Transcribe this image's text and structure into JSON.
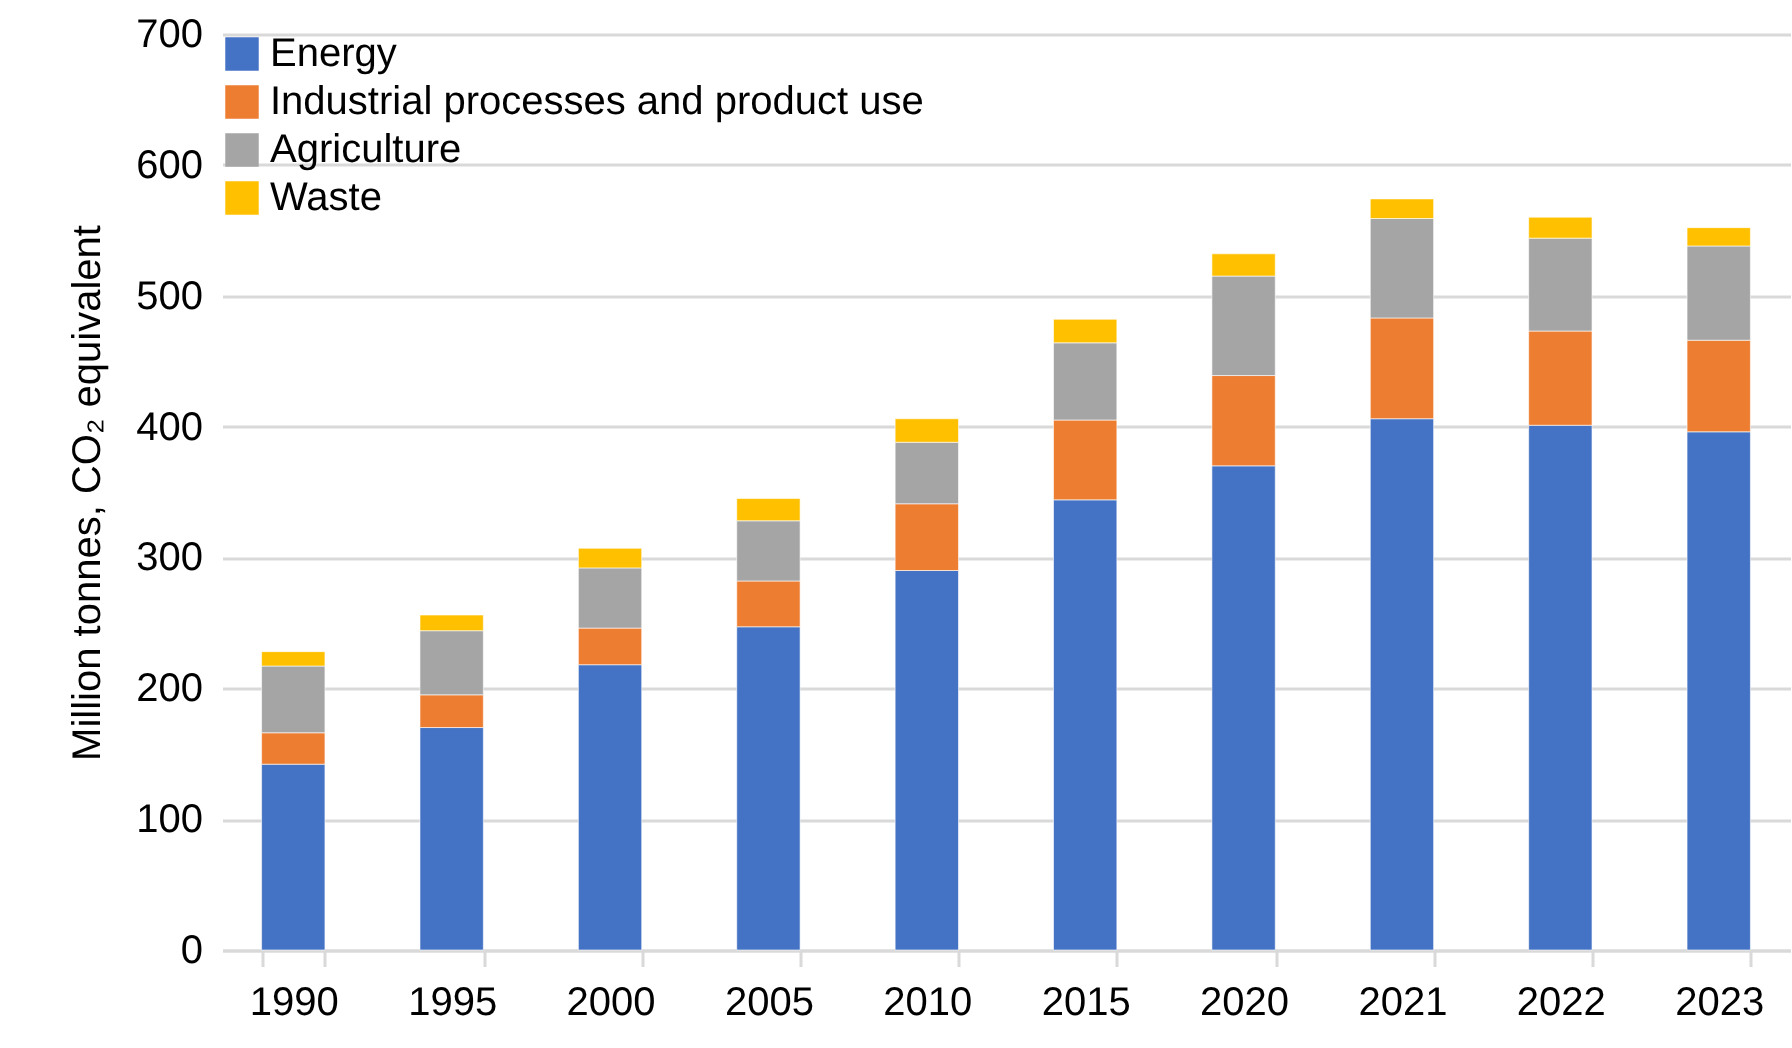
{
  "chart_data": {
    "type": "bar",
    "stacked": true,
    "ylabel": "Million tonnes, CO₂ equivalent",
    "categories": [
      "1990",
      "1995",
      "2000",
      "2005",
      "2010",
      "2015",
      "2020",
      "2021",
      "2022",
      "2023"
    ],
    "series": [
      {
        "name": "Energy",
        "color": "#4472c4",
        "values": [
          142,
          170,
          218,
          247,
          290,
          344,
          370,
          406,
          401,
          396
        ]
      },
      {
        "name": "Industrial processes and product use",
        "color": "#ed7d31",
        "values": [
          24,
          25,
          28,
          35,
          51,
          61,
          69,
          77,
          72,
          70
        ]
      },
      {
        "name": "Agriculture",
        "color": "#a5a5a5",
        "values": [
          51,
          49,
          46,
          46,
          47,
          59,
          76,
          76,
          71,
          72
        ]
      },
      {
        "name": "Waste",
        "color": "#ffc000",
        "values": [
          11,
          12,
          15,
          17,
          18,
          18,
          17,
          15,
          16,
          14
        ]
      }
    ],
    "ylim": [
      0,
      700
    ],
    "yticks": [
      0,
      100,
      200,
      300,
      400,
      500,
      600,
      700
    ],
    "grid": "y",
    "legend": "top left"
  }
}
